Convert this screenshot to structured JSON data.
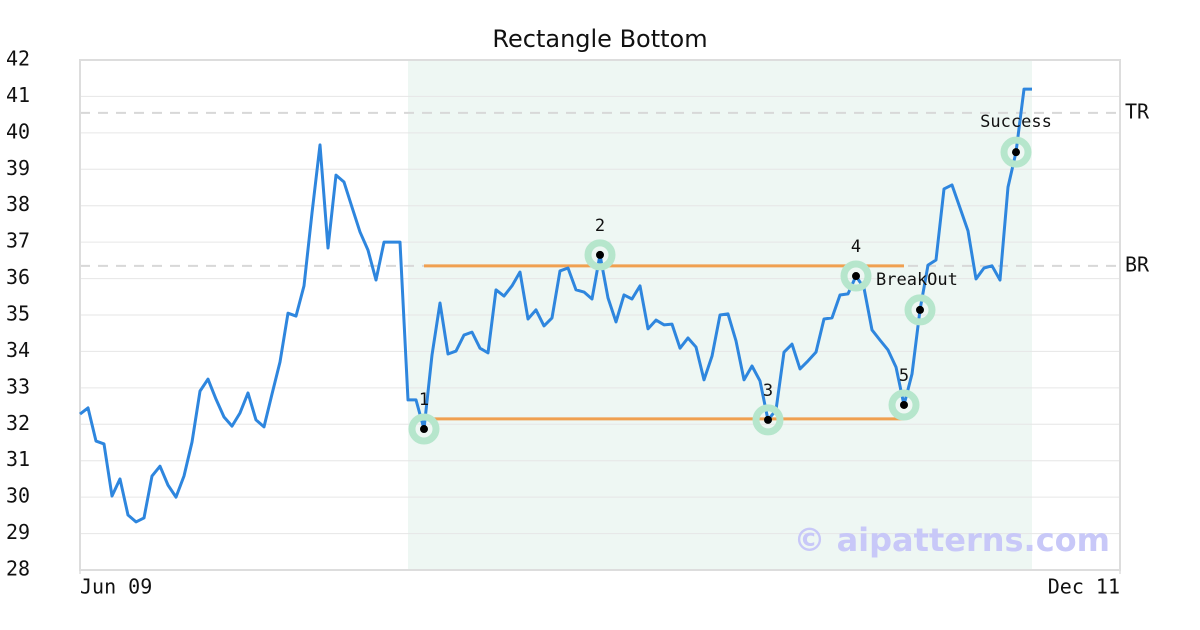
{
  "chart_data": {
    "type": "line",
    "title": "Rectangle Bottom",
    "color": "#2e86de",
    "values": [
      32.28,
      32.45,
      31.54,
      31.46,
      30.03,
      30.5,
      29.51,
      29.32,
      29.43,
      30.58,
      30.85,
      30.33,
      30.0,
      30.58,
      31.51,
      32.91,
      33.24,
      32.69,
      32.2,
      31.95,
      32.31,
      32.86,
      32.12,
      31.93,
      32.83,
      33.71,
      35.05,
      34.97,
      35.8,
      37.8,
      39.67,
      36.84,
      38.84,
      38.65,
      37.96,
      37.28,
      36.78,
      35.96,
      37.0,
      37.0,
      37.0,
      32.67,
      32.67,
      31.87,
      33.9,
      35.33,
      33.93,
      34.01,
      34.45,
      34.53,
      34.09,
      33.96,
      35.69,
      35.52,
      35.8,
      36.18,
      34.89,
      35.14,
      34.7,
      34.92,
      36.21,
      36.29,
      35.69,
      35.63,
      35.44,
      36.65,
      35.47,
      34.81,
      35.55,
      35.44,
      35.8,
      34.62,
      34.86,
      34.73,
      34.75,
      34.09,
      34.37,
      34.12,
      33.22,
      33.87,
      35.0,
      35.03,
      34.29,
      33.22,
      33.6,
      33.19,
      32.12,
      32.39,
      33.98,
      34.2,
      33.52,
      33.74,
      33.98,
      34.89,
      34.92,
      35.55,
      35.58,
      36.07,
      35.74,
      34.59,
      34.31,
      34.04,
      33.57,
      32.53,
      33.38,
      35.14,
      36.37,
      36.51,
      38.46,
      38.57,
      37.94,
      37.31,
      35.99,
      36.29,
      36.35,
      35.96,
      38.51,
      39.47,
      41.2,
      41.2
    ],
    "xlim": [
      0,
      130
    ],
    "xticks": [
      {
        "value": 0,
        "label": "Jun 09"
      },
      {
        "value": 130,
        "label": "Dec 11"
      }
    ],
    "ylim": [
      28,
      42
    ],
    "yticks": [
      28,
      29,
      30,
      31,
      32,
      33,
      34,
      35,
      36,
      37,
      38,
      39,
      40,
      41,
      42
    ],
    "grid": true,
    "pattern_region": {
      "x": [
        41,
        119
      ],
      "color": "#eef7f3"
    },
    "pattern_lines": [
      {
        "value": 36.35,
        "x": [
          43,
          103
        ],
        "color": "#f0a050"
      },
      {
        "value": 32.15,
        "x": [
          43,
          103
        ],
        "color": "#f0a050"
      }
    ],
    "reference_lines": [
      {
        "label": "TR",
        "value": 40.55
      },
      {
        "label": "BR",
        "value": 36.35
      }
    ],
    "annotations": [
      {
        "label": "1",
        "x": 43,
        "value": 31.87
      },
      {
        "label": "2",
        "x": 65,
        "value": 36.65
      },
      {
        "label": "3",
        "x": 86,
        "value": 32.12
      },
      {
        "label": "4",
        "x": 97,
        "value": 36.07
      },
      {
        "label": "5",
        "x": 103,
        "value": 32.53
      },
      {
        "label": "BreakOut",
        "x": 105,
        "value": 35.14
      },
      {
        "label": "Success",
        "x": 117,
        "value": 39.47
      }
    ],
    "watermark": "© aipatterns.com"
  }
}
